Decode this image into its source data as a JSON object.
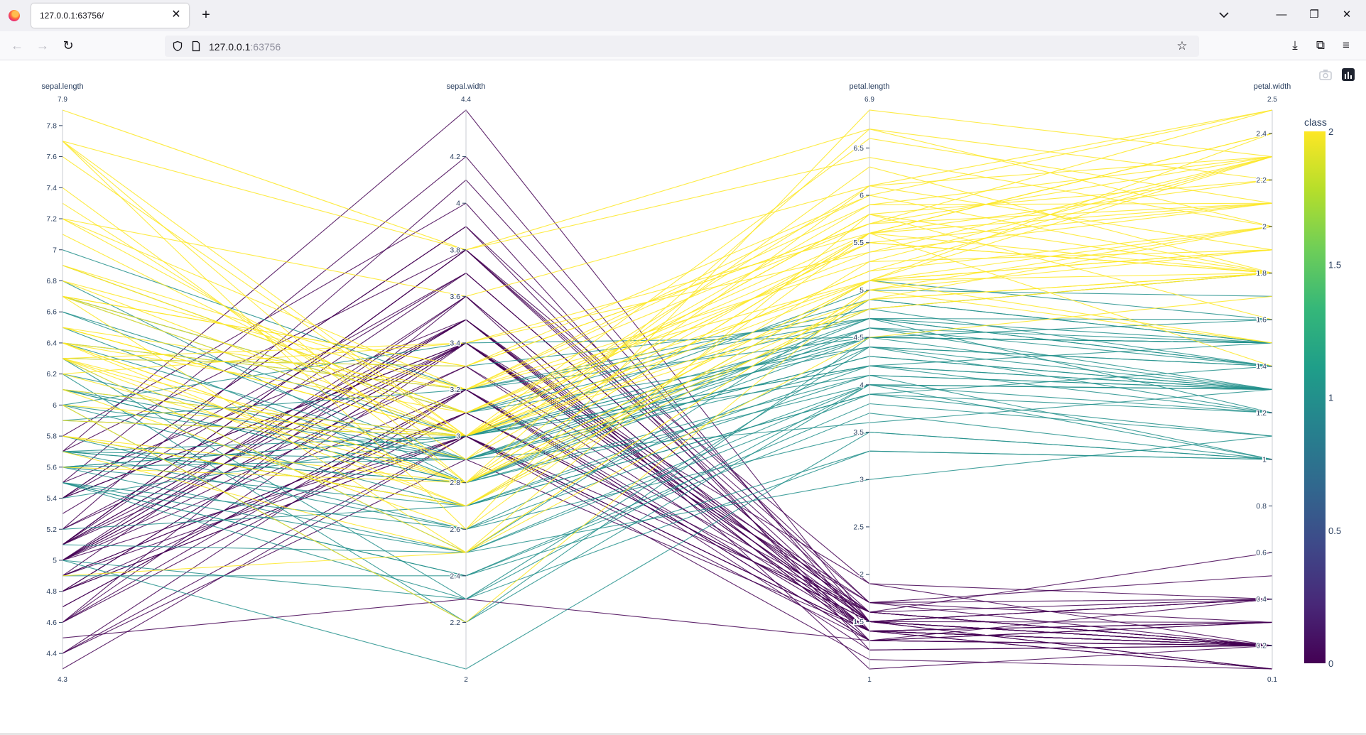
{
  "browser": {
    "tab_title": "127.0.0.1:63756/",
    "url_host": "127.0.0.1",
    "url_port": ":63756",
    "new_tab_symbol": "+",
    "close_symbol": "✕",
    "minimize_symbol": "—",
    "restore_symbol": "❐",
    "window_close_symbol": "✕"
  },
  "nav": {
    "back": "←",
    "forward": "→",
    "reload": "↻",
    "bookmark": "☆",
    "downloads": "⤓",
    "extensions": "⧉",
    "menu": "≡"
  },
  "icons": {
    "firefox": "firefox-icon",
    "shield": "shield-icon",
    "page": "page-icon",
    "camera": "camera-icon",
    "plotly": "plotly-logo-icon"
  },
  "chart_data": {
    "type": "parallel_coordinates",
    "title": "",
    "dimensions": [
      {
        "label": "sepal.length",
        "range": [
          4.3,
          7.9
        ],
        "tickvals": [
          4.4,
          4.6,
          4.8,
          5,
          5.2,
          5.4,
          5.6,
          5.8,
          6,
          6.2,
          6.4,
          6.6,
          6.8,
          7,
          7.2,
          7.4,
          7.6,
          7.8
        ],
        "ticktext": [
          "4.4",
          "4.6",
          "4.8",
          "5",
          "5.2",
          "5.4",
          "5.6",
          "5.8",
          "6",
          "6.2",
          "6.4",
          "6.6",
          "6.8",
          "7",
          "7.2",
          "7.4",
          "7.6",
          "7.8"
        ],
        "range_text": [
          "4.3",
          "7.9"
        ]
      },
      {
        "label": "sepal.width",
        "range": [
          2,
          4.4
        ],
        "tickvals": [
          2.2,
          2.4,
          2.6,
          2.8,
          3,
          3.2,
          3.4,
          3.6,
          3.8,
          4,
          4.2
        ],
        "ticktext": [
          "2.2",
          "2.4",
          "2.6",
          "2.8",
          "3",
          "3.2",
          "3.4",
          "3.6",
          "3.8",
          "4",
          "4.2"
        ],
        "range_text": [
          "2",
          "4.4"
        ]
      },
      {
        "label": "petal.length",
        "range": [
          1,
          6.9
        ],
        "tickvals": [
          1.5,
          2,
          2.5,
          3,
          3.5,
          4,
          4.5,
          5,
          5.5,
          6,
          6.5
        ],
        "ticktext": [
          "1.5",
          "2",
          "2.5",
          "3",
          "3.5",
          "4",
          "4.5",
          "5",
          "5.5",
          "6",
          "6.5"
        ],
        "range_text": [
          "1",
          "6.9"
        ]
      },
      {
        "label": "petal.width",
        "range": [
          0.1,
          2.5
        ],
        "tickvals": [
          0.2,
          0.4,
          0.6,
          0.8,
          1,
          1.2,
          1.4,
          1.6,
          1.8,
          2,
          2.2,
          2.4
        ],
        "ticktext": [
          "0.2",
          "0.4",
          "0.6",
          "0.8",
          "1",
          "1.2",
          "1.4",
          "1.6",
          "1.8",
          "2",
          "2.2",
          "2.4"
        ],
        "range_text": [
          "0.1",
          "2.5"
        ]
      }
    ],
    "colorbar": {
      "title": "class",
      "range": [
        0,
        2
      ],
      "tickvals": [
        0,
        0.5,
        1,
        1.5,
        2
      ],
      "ticktext": [
        "0",
        "0.5",
        "1",
        "1.5",
        "2"
      ],
      "colorscale": [
        "#440154",
        "#482878",
        "#3e4989",
        "#31688e",
        "#26828e",
        "#1f9e89",
        "#35b779",
        "#6ece58",
        "#b5de2b",
        "#fde725"
      ]
    },
    "records": [
      [
        5.1,
        3.5,
        1.4,
        0.2,
        0
      ],
      [
        4.9,
        3.0,
        1.4,
        0.2,
        0
      ],
      [
        4.7,
        3.2,
        1.3,
        0.2,
        0
      ],
      [
        4.6,
        3.1,
        1.5,
        0.2,
        0
      ],
      [
        5.0,
        3.6,
        1.4,
        0.2,
        0
      ],
      [
        5.4,
        3.9,
        1.7,
        0.4,
        0
      ],
      [
        4.6,
        3.4,
        1.4,
        0.3,
        0
      ],
      [
        5.0,
        3.4,
        1.5,
        0.2,
        0
      ],
      [
        4.4,
        2.9,
        1.4,
        0.2,
        0
      ],
      [
        4.9,
        3.1,
        1.5,
        0.1,
        0
      ],
      [
        5.4,
        3.7,
        1.5,
        0.2,
        0
      ],
      [
        4.8,
        3.4,
        1.6,
        0.2,
        0
      ],
      [
        4.8,
        3.0,
        1.4,
        0.1,
        0
      ],
      [
        4.3,
        3.0,
        1.1,
        0.1,
        0
      ],
      [
        5.8,
        4.0,
        1.2,
        0.2,
        0
      ],
      [
        5.7,
        4.4,
        1.5,
        0.4,
        0
      ],
      [
        5.4,
        3.9,
        1.3,
        0.4,
        0
      ],
      [
        5.1,
        3.5,
        1.4,
        0.3,
        0
      ],
      [
        5.7,
        3.8,
        1.7,
        0.3,
        0
      ],
      [
        5.1,
        3.8,
        1.5,
        0.3,
        0
      ],
      [
        5.4,
        3.4,
        1.7,
        0.2,
        0
      ],
      [
        5.1,
        3.7,
        1.5,
        0.4,
        0
      ],
      [
        4.6,
        3.6,
        1.0,
        0.2,
        0
      ],
      [
        5.1,
        3.3,
        1.7,
        0.5,
        0
      ],
      [
        4.8,
        3.4,
        1.9,
        0.2,
        0
      ],
      [
        5.0,
        3.0,
        1.6,
        0.2,
        0
      ],
      [
        5.0,
        3.4,
        1.6,
        0.4,
        0
      ],
      [
        5.2,
        3.5,
        1.5,
        0.2,
        0
      ],
      [
        5.2,
        3.4,
        1.4,
        0.2,
        0
      ],
      [
        4.7,
        3.2,
        1.6,
        0.2,
        0
      ],
      [
        4.8,
        3.1,
        1.6,
        0.2,
        0
      ],
      [
        5.4,
        3.4,
        1.5,
        0.4,
        0
      ],
      [
        5.2,
        4.1,
        1.5,
        0.1,
        0
      ],
      [
        5.5,
        4.2,
        1.4,
        0.2,
        0
      ],
      [
        4.9,
        3.1,
        1.5,
        0.2,
        0
      ],
      [
        5.0,
        3.2,
        1.2,
        0.2,
        0
      ],
      [
        5.5,
        3.5,
        1.3,
        0.2,
        0
      ],
      [
        4.9,
        3.6,
        1.4,
        0.1,
        0
      ],
      [
        4.4,
        3.0,
        1.3,
        0.2,
        0
      ],
      [
        5.1,
        3.4,
        1.5,
        0.2,
        0
      ],
      [
        5.0,
        3.5,
        1.3,
        0.3,
        0
      ],
      [
        4.5,
        2.3,
        1.3,
        0.3,
        0
      ],
      [
        4.4,
        3.2,
        1.3,
        0.2,
        0
      ],
      [
        5.0,
        3.5,
        1.6,
        0.6,
        0
      ],
      [
        5.1,
        3.8,
        1.9,
        0.4,
        0
      ],
      [
        4.8,
        3.0,
        1.4,
        0.3,
        0
      ],
      [
        5.1,
        3.8,
        1.6,
        0.2,
        0
      ],
      [
        4.6,
        3.2,
        1.4,
        0.2,
        0
      ],
      [
        5.3,
        3.7,
        1.5,
        0.2,
        0
      ],
      [
        5.0,
        3.3,
        1.4,
        0.2,
        0
      ],
      [
        7.0,
        3.2,
        4.7,
        1.4,
        1
      ],
      [
        6.4,
        3.2,
        4.5,
        1.5,
        1
      ],
      [
        6.9,
        3.1,
        4.9,
        1.5,
        1
      ],
      [
        5.5,
        2.3,
        4.0,
        1.3,
        1
      ],
      [
        6.5,
        2.8,
        4.6,
        1.5,
        1
      ],
      [
        5.7,
        2.8,
        4.5,
        1.3,
        1
      ],
      [
        6.3,
        3.3,
        4.7,
        1.6,
        1
      ],
      [
        4.9,
        2.4,
        3.3,
        1.0,
        1
      ],
      [
        6.6,
        2.9,
        4.6,
        1.3,
        1
      ],
      [
        5.2,
        2.7,
        3.9,
        1.4,
        1
      ],
      [
        5.0,
        2.0,
        3.5,
        1.0,
        1
      ],
      [
        5.9,
        3.0,
        4.2,
        1.5,
        1
      ],
      [
        6.0,
        2.2,
        4.0,
        1.0,
        1
      ],
      [
        6.1,
        2.9,
        4.7,
        1.4,
        1
      ],
      [
        5.6,
        2.9,
        3.6,
        1.3,
        1
      ],
      [
        6.7,
        3.1,
        4.4,
        1.4,
        1
      ],
      [
        5.6,
        3.0,
        4.5,
        1.5,
        1
      ],
      [
        5.8,
        2.7,
        4.1,
        1.0,
        1
      ],
      [
        6.2,
        2.2,
        4.5,
        1.5,
        1
      ],
      [
        5.6,
        2.5,
        3.9,
        1.1,
        1
      ],
      [
        5.9,
        3.2,
        4.8,
        1.8,
        1
      ],
      [
        6.1,
        2.8,
        4.0,
        1.3,
        1
      ],
      [
        6.3,
        2.5,
        4.9,
        1.5,
        1
      ],
      [
        6.1,
        2.8,
        4.7,
        1.2,
        1
      ],
      [
        6.4,
        2.9,
        4.3,
        1.3,
        1
      ],
      [
        6.6,
        3.0,
        4.4,
        1.4,
        1
      ],
      [
        6.8,
        2.8,
        4.8,
        1.4,
        1
      ],
      [
        6.7,
        3.0,
        5.0,
        1.7,
        1
      ],
      [
        6.0,
        2.9,
        4.5,
        1.5,
        1
      ],
      [
        5.7,
        2.6,
        3.5,
        1.0,
        1
      ],
      [
        5.5,
        2.4,
        3.8,
        1.1,
        1
      ],
      [
        5.5,
        2.4,
        3.7,
        1.0,
        1
      ],
      [
        5.8,
        2.7,
        3.9,
        1.2,
        1
      ],
      [
        6.0,
        2.7,
        5.1,
        1.6,
        1
      ],
      [
        5.4,
        3.0,
        4.5,
        1.5,
        1
      ],
      [
        6.0,
        3.4,
        4.5,
        1.6,
        1
      ],
      [
        6.7,
        3.1,
        4.7,
        1.5,
        1
      ],
      [
        6.3,
        2.3,
        4.4,
        1.3,
        1
      ],
      [
        5.6,
        3.0,
        4.1,
        1.3,
        1
      ],
      [
        5.5,
        2.5,
        4.0,
        1.3,
        1
      ],
      [
        5.5,
        2.6,
        4.4,
        1.2,
        1
      ],
      [
        6.1,
        3.0,
        4.6,
        1.4,
        1
      ],
      [
        5.8,
        2.6,
        4.0,
        1.2,
        1
      ],
      [
        5.0,
        2.3,
        3.3,
        1.0,
        1
      ],
      [
        5.6,
        2.7,
        4.2,
        1.3,
        1
      ],
      [
        5.7,
        3.0,
        4.2,
        1.2,
        1
      ],
      [
        5.7,
        2.9,
        4.2,
        1.3,
        1
      ],
      [
        6.2,
        2.9,
        4.3,
        1.3,
        1
      ],
      [
        5.1,
        2.5,
        3.0,
        1.1,
        1
      ],
      [
        5.7,
        2.8,
        4.1,
        1.3,
        1
      ],
      [
        6.3,
        3.3,
        6.0,
        2.5,
        2
      ],
      [
        5.8,
        2.7,
        5.1,
        1.9,
        2
      ],
      [
        7.1,
        3.0,
        5.9,
        2.1,
        2
      ],
      [
        6.3,
        2.9,
        5.6,
        1.8,
        2
      ],
      [
        6.5,
        3.0,
        5.8,
        2.2,
        2
      ],
      [
        7.6,
        3.0,
        6.6,
        2.1,
        2
      ],
      [
        4.9,
        2.5,
        4.5,
        1.7,
        2
      ],
      [
        7.3,
        2.9,
        6.3,
        1.8,
        2
      ],
      [
        6.7,
        2.5,
        5.8,
        1.8,
        2
      ],
      [
        7.2,
        3.6,
        6.1,
        2.5,
        2
      ],
      [
        6.5,
        3.2,
        5.1,
        2.0,
        2
      ],
      [
        6.4,
        2.7,
        5.3,
        1.9,
        2
      ],
      [
        6.8,
        3.0,
        5.5,
        2.1,
        2
      ],
      [
        5.7,
        2.5,
        5.0,
        2.0,
        2
      ],
      [
        5.8,
        2.8,
        5.1,
        2.4,
        2
      ],
      [
        6.4,
        3.2,
        5.3,
        2.3,
        2
      ],
      [
        6.5,
        3.0,
        5.5,
        1.8,
        2
      ],
      [
        7.7,
        3.8,
        6.7,
        2.2,
        2
      ],
      [
        7.7,
        2.6,
        6.9,
        2.3,
        2
      ],
      [
        6.0,
        2.2,
        5.0,
        1.5,
        2
      ],
      [
        6.9,
        3.2,
        5.7,
        2.3,
        2
      ],
      [
        5.6,
        2.8,
        4.9,
        2.0,
        2
      ],
      [
        7.7,
        2.8,
        6.7,
        2.0,
        2
      ],
      [
        6.3,
        2.7,
        4.9,
        1.8,
        2
      ],
      [
        6.7,
        3.3,
        5.7,
        2.1,
        2
      ],
      [
        7.2,
        3.2,
        6.0,
        1.8,
        2
      ],
      [
        6.2,
        2.8,
        4.8,
        1.8,
        2
      ],
      [
        6.1,
        3.0,
        4.9,
        1.8,
        2
      ],
      [
        6.4,
        2.8,
        5.6,
        2.1,
        2
      ],
      [
        7.2,
        3.0,
        5.8,
        1.6,
        2
      ],
      [
        7.4,
        2.8,
        6.1,
        1.9,
        2
      ],
      [
        7.9,
        3.8,
        6.4,
        2.0,
        2
      ],
      [
        6.4,
        2.8,
        5.6,
        2.2,
        2
      ],
      [
        6.3,
        2.8,
        5.1,
        1.5,
        2
      ],
      [
        6.1,
        2.6,
        5.6,
        1.4,
        2
      ],
      [
        7.7,
        3.0,
        6.1,
        2.3,
        2
      ],
      [
        6.3,
        3.4,
        5.6,
        2.4,
        2
      ],
      [
        6.4,
        3.1,
        5.5,
        1.8,
        2
      ],
      [
        6.0,
        3.0,
        4.8,
        1.8,
        2
      ],
      [
        6.9,
        3.1,
        5.4,
        2.1,
        2
      ],
      [
        6.7,
        3.1,
        5.6,
        2.4,
        2
      ],
      [
        6.9,
        3.1,
        5.1,
        2.3,
        2
      ],
      [
        5.8,
        2.7,
        5.1,
        1.9,
        2
      ],
      [
        6.8,
        3.2,
        5.9,
        2.3,
        2
      ],
      [
        6.7,
        3.3,
        5.7,
        2.5,
        2
      ],
      [
        6.7,
        3.0,
        5.2,
        2.3,
        2
      ],
      [
        6.3,
        2.5,
        5.0,
        1.9,
        2
      ],
      [
        6.5,
        3.0,
        5.2,
        2.0,
        2
      ],
      [
        6.2,
        3.4,
        5.4,
        2.3,
        2
      ],
      [
        5.9,
        3.0,
        5.1,
        1.8,
        2
      ]
    ]
  }
}
